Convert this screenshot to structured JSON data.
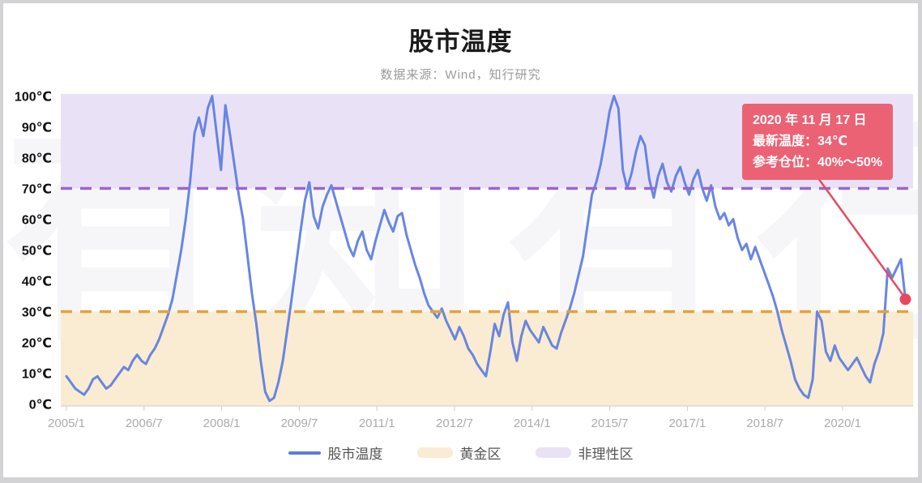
{
  "header": {
    "title": "股市温度",
    "subtitle": "数据来源：Wind，知行研究"
  },
  "watermark": "有知有行",
  "annotation": {
    "line1": "2020 年 11 月 17 日",
    "line2": "最新温度：34℃",
    "line3": "参考仓位：40%～50%"
  },
  "legend": [
    {
      "label": "股市温度",
      "type": "line",
      "color": "#5b7ce1"
    },
    {
      "label": "黄金区",
      "type": "band",
      "color": "#f9ecd2"
    },
    {
      "label": "非理性区",
      "type": "band",
      "color": "#e9e2f6"
    }
  ],
  "colors": {
    "line": "#5b7ce1",
    "gold_band": "#f9ecd2",
    "purple_band": "#e9e2f6",
    "gold_dash": "#e2a33d",
    "purple_dash": "#9a66cc",
    "annot_bg": "#eb6274",
    "annot_text": "#ffffff",
    "callout": "#e74860",
    "axis_line": "#cccccc",
    "x_label": "#ababab",
    "y_label": "#111111",
    "title_text": "#1b1b1b",
    "subtitle_text": "#9a9a9a",
    "legend_text": "#555555"
  },
  "chart_data": {
    "type": "line",
    "title": "股市温度",
    "subtitle": "数据来源：Wind，知行研究",
    "ylim": [
      0,
      100
    ],
    "y_unit": "℃",
    "grid": "off",
    "legend_position": "bottom",
    "y_tick_labels": [
      "100℃",
      "90℃",
      "80℃",
      "70℃",
      "60℃",
      "50℃",
      "40℃",
      "30℃",
      "20℃",
      "10℃",
      "0℃"
    ],
    "x_tick_labels": [
      "2005/1",
      "2006/7",
      "2008/1",
      "2009/7",
      "2011/1",
      "2012/7",
      "2014/1",
      "2015/7",
      "2017/1",
      "2018/7",
      "2020/1"
    ],
    "bands": [
      {
        "name": "黄金区",
        "from": 0,
        "to": 30,
        "color": "#f9ecd2",
        "boundary_line": {
          "value": 30,
          "style": "dashed",
          "color": "#e2a33d"
        }
      },
      {
        "name": "非理性区",
        "from": 70,
        "to": 100,
        "color": "#e9e2f6",
        "boundary_line": {
          "value": 70,
          "style": "dashed",
          "color": "#9a66cc"
        }
      }
    ],
    "series": [
      {
        "name": "股市温度",
        "color": "#5b7ce1",
        "start": "2005-01",
        "frequency": "monthly",
        "values": [
          9,
          7,
          5,
          4,
          3,
          5,
          8,
          9,
          7,
          5,
          6,
          8,
          10,
          12,
          11,
          14,
          16,
          14,
          13,
          16,
          18,
          21,
          25,
          29,
          34,
          42,
          50,
          60,
          72,
          88,
          93,
          87,
          96,
          100,
          88,
          76,
          97,
          88,
          78,
          68,
          60,
          48,
          36,
          26,
          14,
          4,
          1,
          2,
          7,
          14,
          24,
          34,
          45,
          56,
          66,
          72,
          61,
          57,
          64,
          68,
          71,
          66,
          61,
          56,
          51,
          48,
          53,
          56,
          50,
          47,
          53,
          58,
          63,
          59,
          56,
          61,
          62,
          55,
          50,
          45,
          41,
          36,
          32,
          30,
          28,
          31,
          27,
          24,
          21,
          25,
          22,
          18,
          16,
          13,
          11,
          9,
          17,
          26,
          22,
          29,
          33,
          20,
          14,
          22,
          27,
          24,
          22,
          20,
          25,
          22,
          19,
          18,
          23,
          27,
          31,
          36,
          42,
          48,
          58,
          68,
          72,
          78,
          86,
          95,
          100,
          96,
          76,
          70,
          75,
          82,
          87,
          84,
          73,
          67,
          74,
          78,
          72,
          69,
          74,
          77,
          72,
          68,
          73,
          76,
          70,
          66,
          71,
          64,
          60,
          62,
          58,
          60,
          54,
          50,
          52,
          47,
          51,
          47,
          43,
          39,
          35,
          30,
          24,
          19,
          14,
          8,
          5,
          3,
          2,
          8,
          30,
          27,
          17,
          14,
          19,
          15,
          13,
          11,
          13,
          15,
          12,
          9,
          7,
          13,
          17,
          23,
          44,
          41,
          44,
          47,
          34
        ]
      }
    ],
    "last_point": {
      "date": "2020年11月17日",
      "value": 34,
      "suggested_position": "40%～50%"
    }
  }
}
